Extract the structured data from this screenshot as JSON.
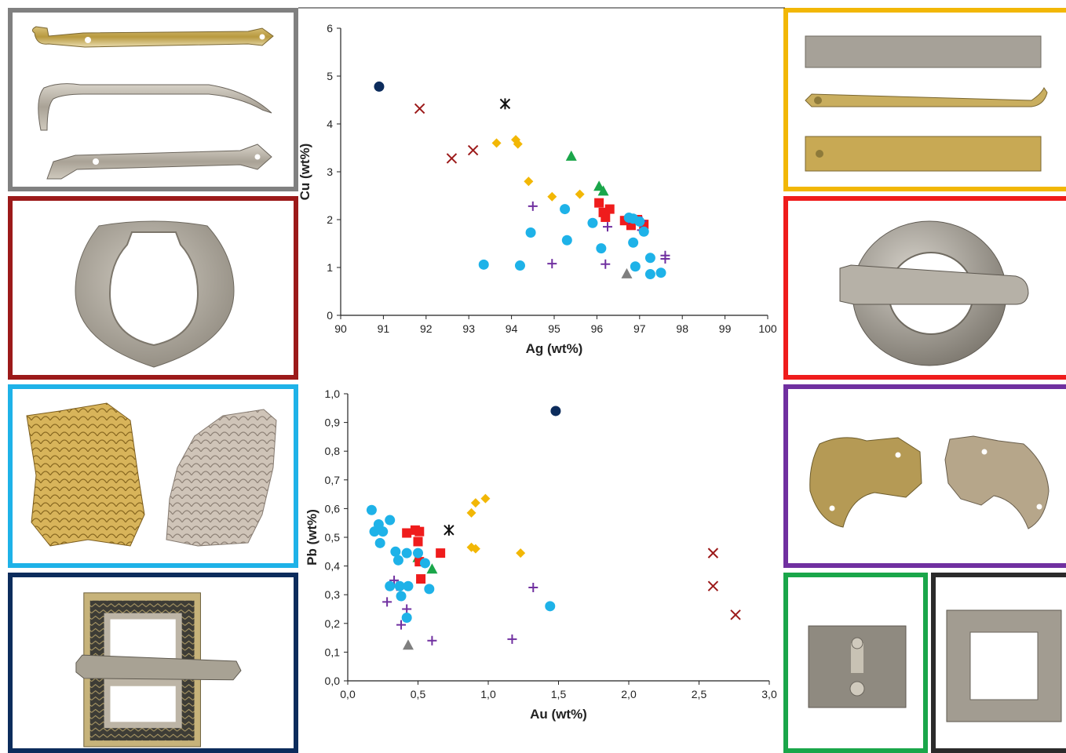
{
  "chart_data": [
    {
      "type": "scatter",
      "xlabel": "Ag (wt%)",
      "ylabel": "Cu (wt%)",
      "xlim": [
        90,
        100
      ],
      "ylim": [
        0,
        6
      ],
      "xticks": [
        "90",
        "91",
        "92",
        "93",
        "94",
        "95",
        "96",
        "97",
        "98",
        "99",
        "100"
      ],
      "yticks": [
        "0",
        "1",
        "2",
        "3",
        "4",
        "5",
        "6"
      ],
      "grid": false,
      "series": [
        {
          "marker": "circle",
          "color": "#0c2c5c",
          "points": [
            [
              90.9,
              4.78
            ]
          ]
        },
        {
          "marker": "x",
          "color": "#9c1a1a",
          "points": [
            [
              91.85,
              4.32
            ],
            [
              92.6,
              3.28
            ],
            [
              93.1,
              3.45
            ]
          ]
        },
        {
          "marker": "asterisk",
          "color": "#111111",
          "points": [
            [
              93.85,
              4.42
            ]
          ]
        },
        {
          "marker": "diamond",
          "color": "#f2b705",
          "points": [
            [
              93.65,
              3.6
            ],
            [
              94.1,
              3.67
            ],
            [
              94.15,
              3.58
            ],
            [
              94.4,
              2.8
            ],
            [
              94.95,
              2.48
            ],
            [
              95.6,
              2.53
            ]
          ]
        },
        {
          "marker": "triangle",
          "color": "#1aa64a",
          "points": [
            [
              95.4,
              3.33
            ],
            [
              96.05,
              2.7
            ],
            [
              96.15,
              2.6
            ]
          ]
        },
        {
          "marker": "square",
          "color": "#ef1c1c",
          "points": [
            [
              96.05,
              2.35
            ],
            [
              96.15,
              2.15
            ],
            [
              96.3,
              2.22
            ],
            [
              96.2,
              2.05
            ],
            [
              96.65,
              1.98
            ],
            [
              96.8,
              1.88
            ],
            [
              97.1,
              1.9
            ],
            [
              96.95,
              2.0
            ]
          ]
        },
        {
          "marker": "plus",
          "color": "#7030a0",
          "points": [
            [
              94.5,
              2.28
            ],
            [
              94.95,
              1.08
            ],
            [
              96.25,
              1.85
            ],
            [
              96.2,
              1.07
            ],
            [
              96.75,
              2.0
            ],
            [
              97.05,
              1.97
            ],
            [
              97.05,
              1.78
            ],
            [
              97.6,
              1.25
            ],
            [
              97.6,
              1.18
            ]
          ]
        },
        {
          "marker": "triangle",
          "color": "#7f7f7f",
          "points": [
            [
              96.7,
              0.87
            ]
          ]
        },
        {
          "marker": "circle",
          "color": "#1eb2e8",
          "points": [
            [
              93.35,
              1.06
            ],
            [
              94.2,
              1.04
            ],
            [
              94.45,
              1.73
            ],
            [
              95.25,
              2.22
            ],
            [
              95.3,
              1.57
            ],
            [
              95.9,
              1.93
            ],
            [
              96.1,
              1.4
            ],
            [
              96.75,
              2.04
            ],
            [
              96.85,
              2.02
            ],
            [
              97.0,
              1.96
            ],
            [
              96.85,
              1.52
            ],
            [
              96.9,
              1.02
            ],
            [
              97.1,
              1.75
            ],
            [
              97.25,
              1.2
            ],
            [
              97.25,
              0.86
            ],
            [
              97.5,
              0.89
            ]
          ]
        }
      ]
    },
    {
      "type": "scatter",
      "xlabel": "Au (wt%)",
      "ylabel": "Pb (wt%)",
      "xlim": [
        0,
        3
      ],
      "ylim": [
        0,
        1
      ],
      "xticks": [
        "0,0",
        "0,5",
        "1,0",
        "1,5",
        "2,0",
        "2,5",
        "3,0"
      ],
      "yticks": [
        "0,0",
        "0,1",
        "0,2",
        "0,3",
        "0,4",
        "0,5",
        "0,6",
        "0,7",
        "0,8",
        "0,9",
        "1,0"
      ],
      "grid": false,
      "series": [
        {
          "marker": "circle",
          "color": "#0c2c5c",
          "points": [
            [
              1.48,
              0.94
            ]
          ]
        },
        {
          "marker": "x",
          "color": "#9c1a1a",
          "points": [
            [
              2.6,
              0.445
            ],
            [
              2.6,
              0.33
            ],
            [
              2.76,
              0.23
            ]
          ]
        },
        {
          "marker": "asterisk",
          "color": "#111111",
          "points": [
            [
              0.72,
              0.525
            ]
          ]
        },
        {
          "marker": "diamond",
          "color": "#f2b705",
          "points": [
            [
              0.98,
              0.635
            ],
            [
              0.91,
              0.62
            ],
            [
              0.88,
              0.585
            ],
            [
              0.88,
              0.465
            ],
            [
              0.91,
              0.46
            ],
            [
              1.23,
              0.445
            ]
          ]
        },
        {
          "marker": "triangle",
          "color": "#1aa64a",
          "points": [
            [
              0.5,
              0.43
            ],
            [
              0.6,
              0.39
            ]
          ]
        },
        {
          "marker": "square",
          "color": "#ef1c1c",
          "points": [
            [
              0.42,
              0.515
            ],
            [
              0.48,
              0.525
            ],
            [
              0.51,
              0.52
            ],
            [
              0.5,
              0.485
            ],
            [
              0.51,
              0.415
            ],
            [
              0.52,
              0.355
            ],
            [
              0.66,
              0.445
            ]
          ]
        },
        {
          "marker": "plus",
          "color": "#7030a0",
          "points": [
            [
              0.33,
              0.35
            ],
            [
              0.35,
              0.33
            ],
            [
              0.28,
              0.275
            ],
            [
              0.42,
              0.25
            ],
            [
              0.38,
              0.195
            ],
            [
              0.6,
              0.14
            ],
            [
              1.17,
              0.145
            ],
            [
              1.32,
              0.325
            ]
          ]
        },
        {
          "marker": "triangle",
          "color": "#7f7f7f",
          "points": [
            [
              0.43,
              0.125
            ]
          ]
        },
        {
          "marker": "circle",
          "color": "#1eb2e8",
          "points": [
            [
              0.17,
              0.595
            ],
            [
              0.22,
              0.545
            ],
            [
              0.19,
              0.52
            ],
            [
              0.25,
              0.52
            ],
            [
              0.23,
              0.48
            ],
            [
              0.3,
              0.56
            ],
            [
              0.34,
              0.45
            ],
            [
              0.36,
              0.42
            ],
            [
              0.42,
              0.445
            ],
            [
              0.5,
              0.445
            ],
            [
              0.55,
              0.41
            ],
            [
              0.3,
              0.33
            ],
            [
              0.37,
              0.33
            ],
            [
              0.43,
              0.33
            ],
            [
              0.38,
              0.295
            ],
            [
              0.42,
              0.22
            ],
            [
              0.58,
              0.32
            ],
            [
              1.44,
              0.26
            ]
          ]
        }
      ]
    }
  ],
  "panels": {
    "left": [
      {
        "id": "p-gray",
        "color": "#808080"
      },
      {
        "id": "p-darkred",
        "color": "#9c1a1a"
      },
      {
        "id": "p-lightblue",
        "color": "#1eb2e8"
      },
      {
        "id": "p-navy",
        "color": "#0c2c5c"
      }
    ],
    "right": [
      {
        "id": "p-yellow",
        "color": "#f2b705"
      },
      {
        "id": "p-red",
        "color": "#ef1c1c"
      },
      {
        "id": "p-purple",
        "color": "#7030a0"
      },
      {
        "id": "p-green",
        "color": "#1aa64a"
      },
      {
        "id": "p-black",
        "color": "#2b2b2b"
      }
    ],
    "artifacts": {
      "p-gray": "strap-end-fittings",
      "p-darkred": "oval-ring",
      "p-lightblue": "scale-pattern-sheet-fragments",
      "p-navy": "rectangular-buckle",
      "p-yellow": "bar-strap-fittings",
      "p-red": "ring-buckle",
      "p-purple": "crescent-fragments",
      "p-green": "plate-with-rivets",
      "p-black": "square-frame"
    }
  }
}
